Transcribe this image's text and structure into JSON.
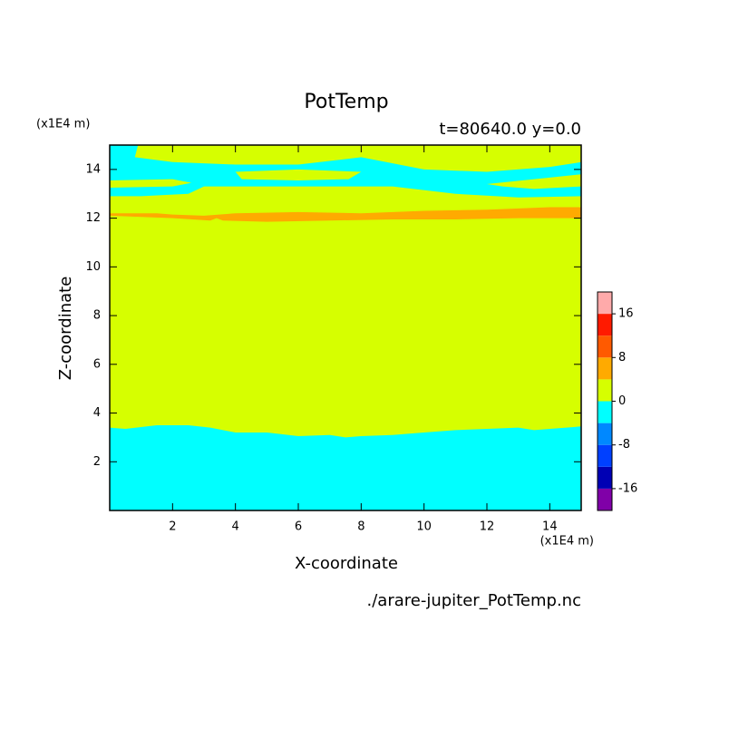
{
  "chart_data": {
    "type": "contour",
    "title": "PotTemp",
    "subtitle": "t=80640.0  y=0.0",
    "xlabel": "X-coordinate",
    "ylabel": "Z-coordinate",
    "xunit": "(x1E4 m)",
    "yunit": "(x1E4 m)",
    "footer": "./arare-jupiter_PotTemp.nc",
    "xlim": [
      0,
      15
    ],
    "ylim": [
      0,
      15
    ],
    "xticks": [
      2,
      4,
      6,
      8,
      10,
      12,
      14
    ],
    "yticks": [
      2,
      4,
      6,
      8,
      10,
      12,
      14
    ],
    "levels": [
      -20,
      -16,
      -12,
      -8,
      -4,
      0,
      4,
      8,
      12,
      16,
      20
    ],
    "colors": [
      "#8000a8",
      "#0000b4",
      "#0040ff",
      "#0088ff",
      "#00ffff",
      "#d6ff00",
      "#ffaa00",
      "#ff5a00",
      "#ff1a00",
      "#ffaaaa"
    ],
    "cbarticks": [
      -16,
      -8,
      0,
      8,
      16
    ],
    "regions": [
      {
        "level": 0,
        "x": [
          0,
          15,
          15,
          0
        ],
        "z": [
          0,
          0,
          15,
          15
        ]
      },
      {
        "level": -4,
        "x": [
          0,
          0.9,
          0.8,
          2,
          4,
          6,
          8,
          10,
          12,
          14,
          15,
          15,
          13,
          11,
          9,
          7,
          5,
          3,
          2.5,
          1,
          0
        ],
        "z": [
          15,
          15,
          14.5,
          14.3,
          14.2,
          14.2,
          14.5,
          14.0,
          13.9,
          14.1,
          14.3,
          12.9,
          12.85,
          13.0,
          13.3,
          13.3,
          13.3,
          13.3,
          13.0,
          12.9,
          12.9
        ]
      },
      {
        "level": 0,
        "x": [
          4,
          6,
          8,
          7.6,
          6,
          4.2
        ],
        "z": [
          13.9,
          14.0,
          13.9,
          13.6,
          13.55,
          13.6
        ]
      },
      {
        "level": 0,
        "x": [
          12,
          13.5,
          15,
          15,
          13.5,
          12.5
        ],
        "z": [
          13.4,
          13.6,
          13.8,
          13.3,
          13.2,
          13.3
        ]
      },
      {
        "level": 0,
        "x": [
          0,
          2,
          2.6,
          2,
          0
        ],
        "z": [
          13.55,
          13.6,
          13.45,
          13.3,
          13.25
        ]
      },
      {
        "level": 4,
        "x": [
          0,
          1.5,
          2,
          3,
          4,
          6,
          8,
          10,
          12,
          14,
          15,
          15,
          13,
          11,
          9,
          7,
          5,
          3.6,
          3.4,
          3.2,
          2,
          0
        ],
        "z": [
          12.2,
          12.2,
          12.15,
          12.1,
          12.2,
          12.25,
          12.2,
          12.3,
          12.35,
          12.45,
          12.45,
          12.0,
          12.0,
          11.95,
          11.95,
          11.9,
          11.85,
          11.9,
          12.0,
          11.9,
          12.0,
          12.1
        ]
      },
      {
        "level": -4,
        "x": [
          0,
          0.5,
          1.5,
          2.5,
          3.2,
          4,
          5,
          6,
          7,
          7.5,
          8,
          9,
          10,
          11,
          12,
          13,
          13.5,
          14,
          15,
          15,
          0
        ],
        "z": [
          3.4,
          3.35,
          3.5,
          3.5,
          3.4,
          3.2,
          3.2,
          3.05,
          3.1,
          3.0,
          3.05,
          3.1,
          3.2,
          3.3,
          3.35,
          3.4,
          3.3,
          3.35,
          3.45,
          0,
          0
        ]
      }
    ]
  }
}
